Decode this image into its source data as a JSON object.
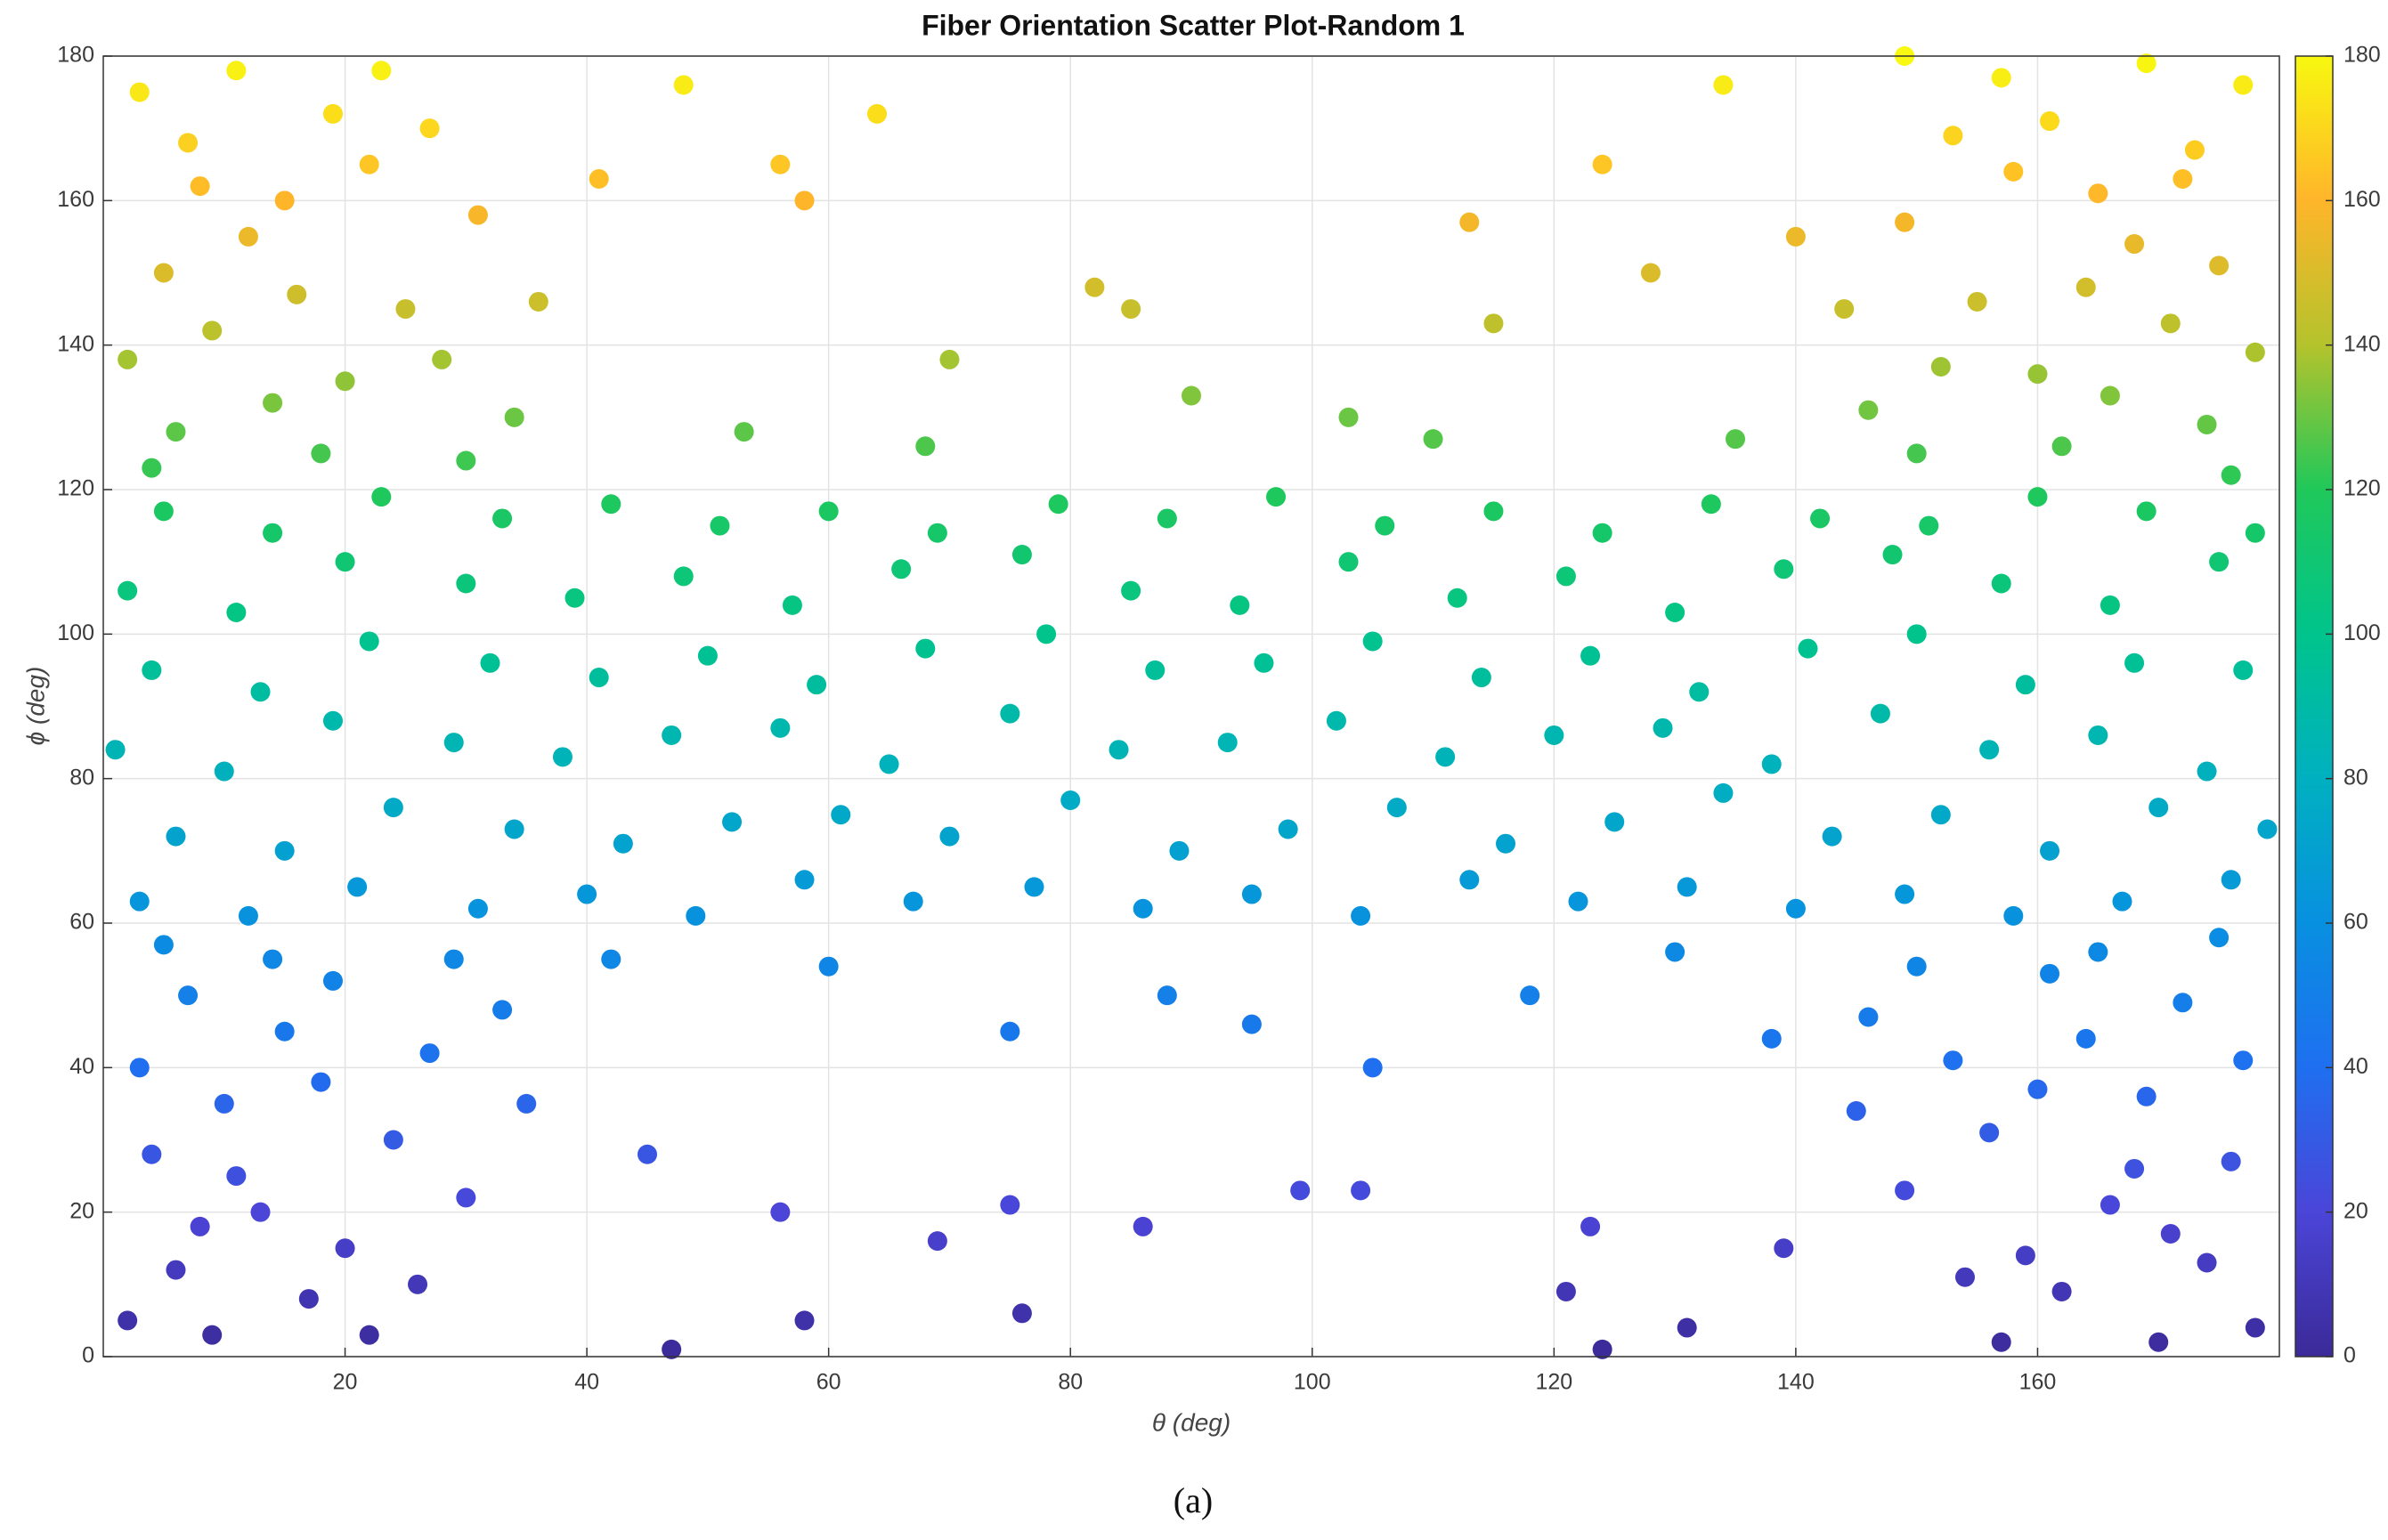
{
  "chart_data": {
    "type": "scatter",
    "title": "Fiber Orientation Scatter Plot-Random 1",
    "xlabel": "θ (deg)",
    "ylabel": "ϕ (deg)",
    "caption": "(a)",
    "xlim": [
      0,
      180
    ],
    "ylim": [
      0,
      180
    ],
    "xticks": [
      20,
      40,
      60,
      80,
      100,
      120,
      140,
      160
    ],
    "yticks": [
      0,
      20,
      40,
      60,
      80,
      100,
      120,
      140,
      160,
      180
    ],
    "grid": true,
    "colorbar": {
      "lim": [
        0,
        180
      ],
      "ticks": [
        0,
        20,
        40,
        60,
        80,
        100,
        120,
        140,
        160,
        180
      ],
      "colormap": [
        "#3b2a98",
        "#4b45d8",
        "#1f6ff0",
        "#0890e0",
        "#00b0c0",
        "#00c48c",
        "#20c85a",
        "#b4c32c",
        "#ffb52a",
        "#f8f810"
      ]
    },
    "x": [
      3,
      6,
      1,
      4,
      2,
      5,
      12,
      15,
      10,
      13,
      11,
      14,
      21,
      24,
      19,
      22,
      20,
      23,
      31,
      34,
      29,
      32,
      30,
      33,
      40,
      43,
      38,
      41,
      39,
      42,
      49,
      52,
      47,
      50,
      48,
      51,
      58,
      61,
      56,
      59,
      57,
      60,
      67,
      70,
      65,
      68,
      66,
      69,
      77,
      80,
      75,
      78,
      76,
      79,
      86,
      89,
      84,
      87,
      85,
      88,
      95,
      98,
      93,
      96,
      94,
      97,
      104,
      107,
      102,
      105,
      103,
      106,
      113,
      116,
      111,
      114,
      112,
      115,
      122,
      125,
      120,
      123,
      121,
      124,
      131,
      134,
      129,
      132,
      130,
      133,
      140,
      143,
      138,
      141,
      139,
      142,
      149,
      152,
      147,
      150,
      148,
      151,
      158,
      161,
      156,
      159,
      157,
      160,
      167,
      170,
      165,
      168,
      166,
      169,
      176,
      179,
      174,
      177,
      175,
      178,
      2,
      6,
      9,
      13,
      17,
      4,
      10,
      15,
      20,
      24,
      7,
      19,
      27,
      30,
      22,
      11,
      3,
      26,
      33,
      14,
      8,
      18,
      29,
      5,
      35,
      178,
      174,
      170,
      166,
      162,
      176,
      169,
      164,
      159,
      156,
      172,
      161,
      153,
      149,
      157,
      168,
      177,
      154,
      146,
      165,
      171,
      160,
      150,
      175,
      145,
      3,
      7,
      11,
      15,
      19,
      5,
      9,
      14,
      22,
      25,
      6,
      18,
      28,
      31,
      23,
      12,
      2,
      27,
      34,
      16,
      8,
      20,
      30,
      4,
      36,
      177,
      173,
      169,
      165,
      161,
      175,
      171,
      166,
      158,
      155,
      174,
      162,
      152,
      149,
      157,
      168,
      178,
      153,
      146,
      164,
      172,
      160,
      150,
      176,
      144,
      48,
      64,
      82,
      85,
      113,
      115,
      124,
      134,
      149,
      41,
      56,
      58,
      70,
      90,
      103,
      128,
      140,
      45,
      56,
      69,
      75,
      86,
      99,
      104,
      121,
      123,
      131,
      139,
      47,
      58,
      76,
      124,
      53,
      68,
      110,
      135,
      42,
      60,
      95,
      118,
      130,
      138,
      75,
      105,
      88
    ],
    "y": [
      63,
      72,
      84,
      95,
      106,
      117,
      61,
      70,
      81,
      92,
      103,
      114,
      65,
      76,
      88,
      99,
      110,
      119,
      62,
      73,
      85,
      96,
      107,
      116,
      64,
      71,
      83,
      94,
      105,
      118,
      61,
      74,
      86,
      97,
      108,
      115,
      66,
      75,
      87,
      93,
      104,
      117,
      63,
      72,
      82,
      98,
      109,
      114,
      65,
      77,
      89,
      100,
      111,
      118,
      62,
      70,
      84,
      95,
      106,
      116,
      64,
      73,
      85,
      96,
      104,
      119,
      61,
      76,
      88,
      99,
      110,
      115,
      66,
      71,
      83,
      94,
      105,
      117,
      63,
      74,
      86,
      97,
      108,
      114,
      65,
      78,
      87,
      92,
      103,
      118,
      62,
      72,
      82,
      98,
      109,
      116,
      64,
      75,
      89,
      100,
      111,
      115,
      61,
      70,
      84,
      93,
      107,
      119,
      63,
      76,
      86,
      96,
      104,
      117,
      66,
      73,
      81,
      95,
      110,
      114,
      5,
      12,
      3,
      20,
      8,
      28,
      35,
      45,
      15,
      30,
      50,
      52,
      42,
      22,
      3,
      25,
      40,
      10,
      48,
      55,
      18,
      38,
      55,
      57,
      35,
      4,
      13,
      2,
      21,
      9,
      27,
      36,
      44,
      14,
      31,
      49,
      53,
      41,
      23,
      2,
      26,
      41,
      11,
      47,
      56,
      17,
      37,
      54,
      58,
      34,
      175,
      168,
      178,
      160,
      172,
      150,
      142,
      132,
      165,
      145,
      128,
      125,
      138,
      158,
      178,
      155,
      138,
      170,
      130,
      147,
      162,
      135,
      124,
      123,
      146,
      176,
      167,
      179,
      161,
      171,
      151,
      143,
      133,
      164,
      146,
      129,
      126,
      137,
      157,
      177,
      154,
      139,
      169,
      131,
      148,
      163,
      136,
      125,
      122,
      145,
      176,
      172,
      148,
      145,
      157,
      143,
      165,
      176,
      180,
      163,
      165,
      160,
      138,
      133,
      130,
      150,
      155,
      28,
      20,
      16,
      21,
      18,
      23,
      23,
      9,
      18,
      4,
      15,
      1,
      5,
      6,
      1,
      128,
      126,
      127,
      127,
      55,
      54,
      46,
      50,
      56,
      44,
      45,
      40,
      50
    ]
  }
}
